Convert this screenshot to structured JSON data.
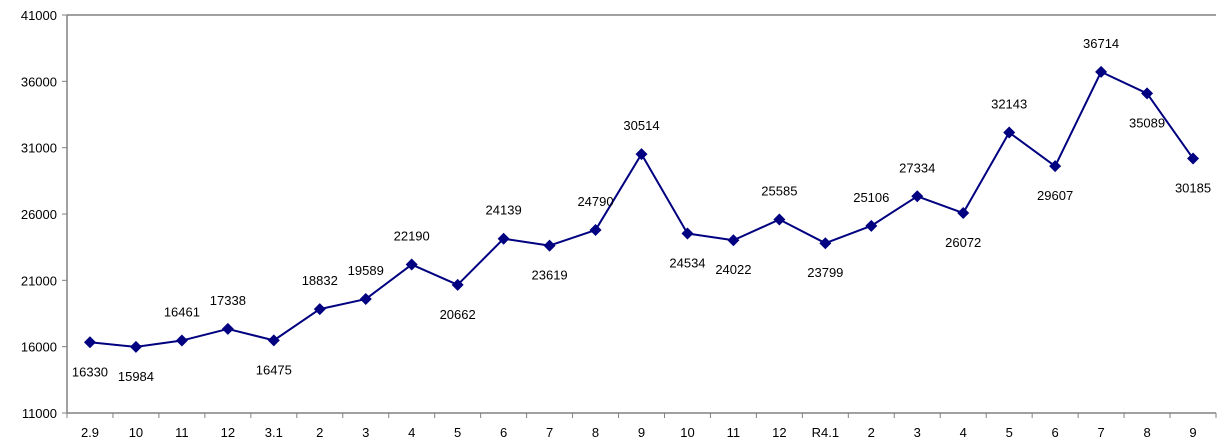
{
  "chart_data": {
    "type": "line",
    "title": "",
    "xlabel": "",
    "ylabel": "",
    "categories": [
      "2.9",
      "10",
      "11",
      "12",
      "3.1",
      "2",
      "3",
      "4",
      "5",
      "6",
      "7",
      "8",
      "9",
      "10",
      "11",
      "12",
      "R4.1",
      "2",
      "3",
      "4",
      "5",
      "6",
      "7",
      "8",
      "9"
    ],
    "series": [
      {
        "color": "#000080",
        "marker": "diamond",
        "values": [
          16330,
          15984,
          16461,
          17338,
          16475,
          18832,
          19589,
          22190,
          20662,
          24139,
          23619,
          24790,
          30514,
          24534,
          24022,
          25585,
          23799,
          25106,
          27334,
          26072,
          32143,
          29607,
          36714,
          35089,
          30185
        ],
        "label_positions": [
          "below",
          "below",
          "above",
          "above",
          "below",
          "above",
          "above",
          "above",
          "below",
          "above",
          "below",
          "above",
          "above",
          "below",
          "below",
          "above",
          "below",
          "above",
          "above",
          "below",
          "above",
          "below",
          "above",
          "below",
          "below"
        ]
      }
    ],
    "ylim": [
      11000,
      41000
    ],
    "yticks": [
      11000,
      16000,
      21000,
      26000,
      31000,
      36000,
      41000
    ],
    "grid": false,
    "legend": "none"
  }
}
